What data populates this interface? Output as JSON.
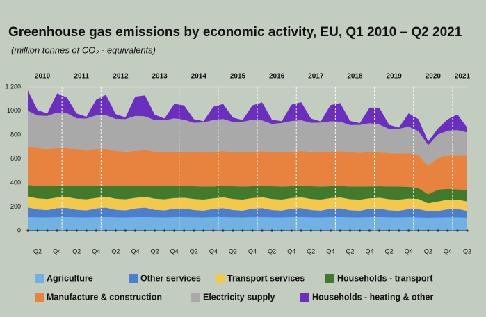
{
  "chart_data": {
    "type": "stacked-area",
    "title": "Greenhouse gas emissions by economic activity, EU, Q1 2010 – Q2 2021",
    "subtitle": "(million tonnes of CO₂ - equivalents)",
    "year_labels": [
      "2010",
      "2011",
      "2012",
      "2013",
      "2014",
      "2015",
      "2016",
      "2017",
      "2018",
      "2019",
      "2020",
      "2021"
    ],
    "categories": [
      null,
      "Q2",
      null,
      "Q4",
      null,
      "Q2",
      null,
      "Q4",
      null,
      "Q2",
      null,
      "Q4",
      null,
      "Q2",
      null,
      "Q4",
      null,
      "Q2",
      null,
      "Q4",
      null,
      "Q2",
      null,
      "Q4",
      null,
      "Q2",
      null,
      "Q4",
      null,
      "Q2",
      null,
      "Q4",
      null,
      "Q2",
      null,
      "Q4",
      null,
      "Q2",
      null,
      "Q4",
      null,
      "Q2",
      null,
      "Q4",
      null,
      "Q2"
    ],
    "ylim": [
      0,
      1200
    ],
    "yticks": [
      0,
      200,
      400,
      600,
      800,
      1000,
      {
        "value": 1200,
        "label": "1 200"
      }
    ],
    "grid": true,
    "series": [
      {
        "name": "Agriculture",
        "color": "#72b1e3",
        "values": [
          116,
          114,
          113,
          115,
          116,
          114,
          113,
          115,
          116,
          114,
          113,
          115,
          116,
          114,
          113,
          115,
          116,
          114,
          113,
          115,
          116,
          114,
          113,
          115,
          116,
          114,
          113,
          115,
          116,
          114,
          113,
          115,
          116,
          114,
          113,
          115,
          116,
          114,
          113,
          115,
          113,
          110,
          112,
          114,
          114,
          110
        ]
      },
      {
        "name": "Other services",
        "color": "#4a7fd0",
        "values": [
          80,
          65,
          60,
          75,
          75,
          62,
          58,
          72,
          78,
          62,
          58,
          72,
          78,
          62,
          58,
          70,
          70,
          60,
          56,
          68,
          74,
          60,
          56,
          70,
          74,
          60,
          56,
          70,
          74,
          60,
          56,
          70,
          72,
          58,
          55,
          68,
          70,
          58,
          55,
          66,
          68,
          55,
          55,
          66,
          70,
          56
        ]
      },
      {
        "name": "Transport services",
        "color": "#f4c84a",
        "values": [
          90,
          92,
          92,
          88,
          90,
          92,
          92,
          88,
          90,
          92,
          92,
          88,
          90,
          92,
          92,
          88,
          90,
          92,
          92,
          88,
          90,
          92,
          92,
          88,
          90,
          92,
          92,
          88,
          90,
          92,
          92,
          88,
          90,
          92,
          92,
          88,
          90,
          92,
          92,
          88,
          85,
          65,
          78,
          80,
          76,
          80
        ]
      },
      {
        "name": "Households - transport",
        "color": "#417a2c",
        "values": [
          95,
          105,
          108,
          98,
          95,
          105,
          108,
          98,
          95,
          105,
          108,
          98,
          95,
          105,
          108,
          98,
          95,
          105,
          108,
          98,
          95,
          105,
          108,
          98,
          95,
          105,
          108,
          98,
          95,
          105,
          108,
          98,
          95,
          105,
          108,
          98,
          95,
          105,
          108,
          98,
          90,
          75,
          98,
          90,
          85,
          95
        ]
      },
      {
        "name": "Manufacture & construction",
        "color": "#e8823f",
        "values": [
          320,
          315,
          310,
          315,
          315,
          305,
          300,
          305,
          300,
          295,
          290,
          295,
          295,
          290,
          285,
          292,
          290,
          285,
          285,
          290,
          292,
          288,
          285,
          290,
          290,
          285,
          285,
          290,
          292,
          290,
          288,
          292,
          292,
          288,
          285,
          288,
          285,
          280,
          278,
          282,
          275,
          235,
          265,
          280,
          285,
          290
        ]
      },
      {
        "name": "Electricity supply",
        "color": "#a9a9a9",
        "values": [
          300,
          270,
          275,
          295,
          290,
          260,
          265,
          285,
          285,
          265,
          270,
          290,
          280,
          260,
          265,
          275,
          265,
          245,
          250,
          265,
          265,
          250,
          255,
          265,
          255,
          235,
          245,
          255,
          255,
          240,
          245,
          250,
          245,
          225,
          230,
          240,
          230,
          200,
          205,
          220,
          200,
          175,
          195,
          205,
          210,
          190
        ]
      },
      {
        "name": "Households - heating & other",
        "color": "#6a2fbf",
        "values": [
          170,
          45,
          20,
          160,
          130,
          40,
          15,
          130,
          170,
          40,
          15,
          160,
          175,
          45,
          15,
          120,
          120,
          30,
          10,
          110,
          125,
          35,
          15,
          120,
          150,
          35,
          15,
          135,
          150,
          35,
          10,
          135,
          155,
          35,
          15,
          130,
          140,
          35,
          10,
          110,
          100,
          30,
          50,
          95,
          130,
          40
        ]
      }
    ]
  }
}
